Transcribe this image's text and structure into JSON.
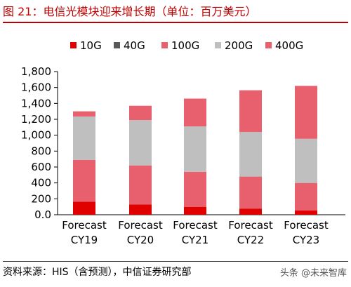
{
  "figure": {
    "title": "图 21：电信光模块迎来增长期（单位：百万美元）",
    "source": "资料来源：HIS（含预测），中信证券研究部",
    "watermark": "头条 @未来智库"
  },
  "colors": {
    "title": "#c00000",
    "10G": "#e00000",
    "40G": "#595959",
    "100G": "#e8606e",
    "200G": "#bfbfbf",
    "400G": "#e8606e"
  },
  "chart_data": {
    "type": "bar",
    "stacked": true,
    "categories": [
      [
        "Forecast",
        "CY19"
      ],
      [
        "Forecast",
        "CY20"
      ],
      [
        "Forecast",
        "CY21"
      ],
      [
        "Forecast",
        "CY22"
      ],
      [
        "Forecast",
        "CY23"
      ]
    ],
    "series": [
      {
        "name": "10G",
        "color": "#e00000",
        "values": [
          165,
          130,
          100,
          75,
          55
        ]
      },
      {
        "name": "40G",
        "color": "#595959",
        "values": [
          0,
          0,
          0,
          0,
          0
        ]
      },
      {
        "name": "100G",
        "color": "#e8606e",
        "values": [
          525,
          490,
          440,
          405,
          345
        ]
      },
      {
        "name": "200G",
        "color": "#bfbfbf",
        "values": [
          545,
          570,
          570,
          560,
          555
        ]
      },
      {
        "name": "400G",
        "color": "#e8606e",
        "values": [
          65,
          180,
          350,
          525,
          665
        ]
      }
    ],
    "ylim": [
      0,
      1800
    ],
    "yticks": [
      0,
      200,
      400,
      600,
      800,
      1000,
      1200,
      1400,
      1600,
      1800
    ],
    "ytick_labels": [
      "0.0",
      "200",
      "400",
      "600",
      "800",
      "1,000",
      "1,200",
      "1,400",
      "1,600",
      "1,800"
    ],
    "legend_position": "top",
    "grid": false
  }
}
